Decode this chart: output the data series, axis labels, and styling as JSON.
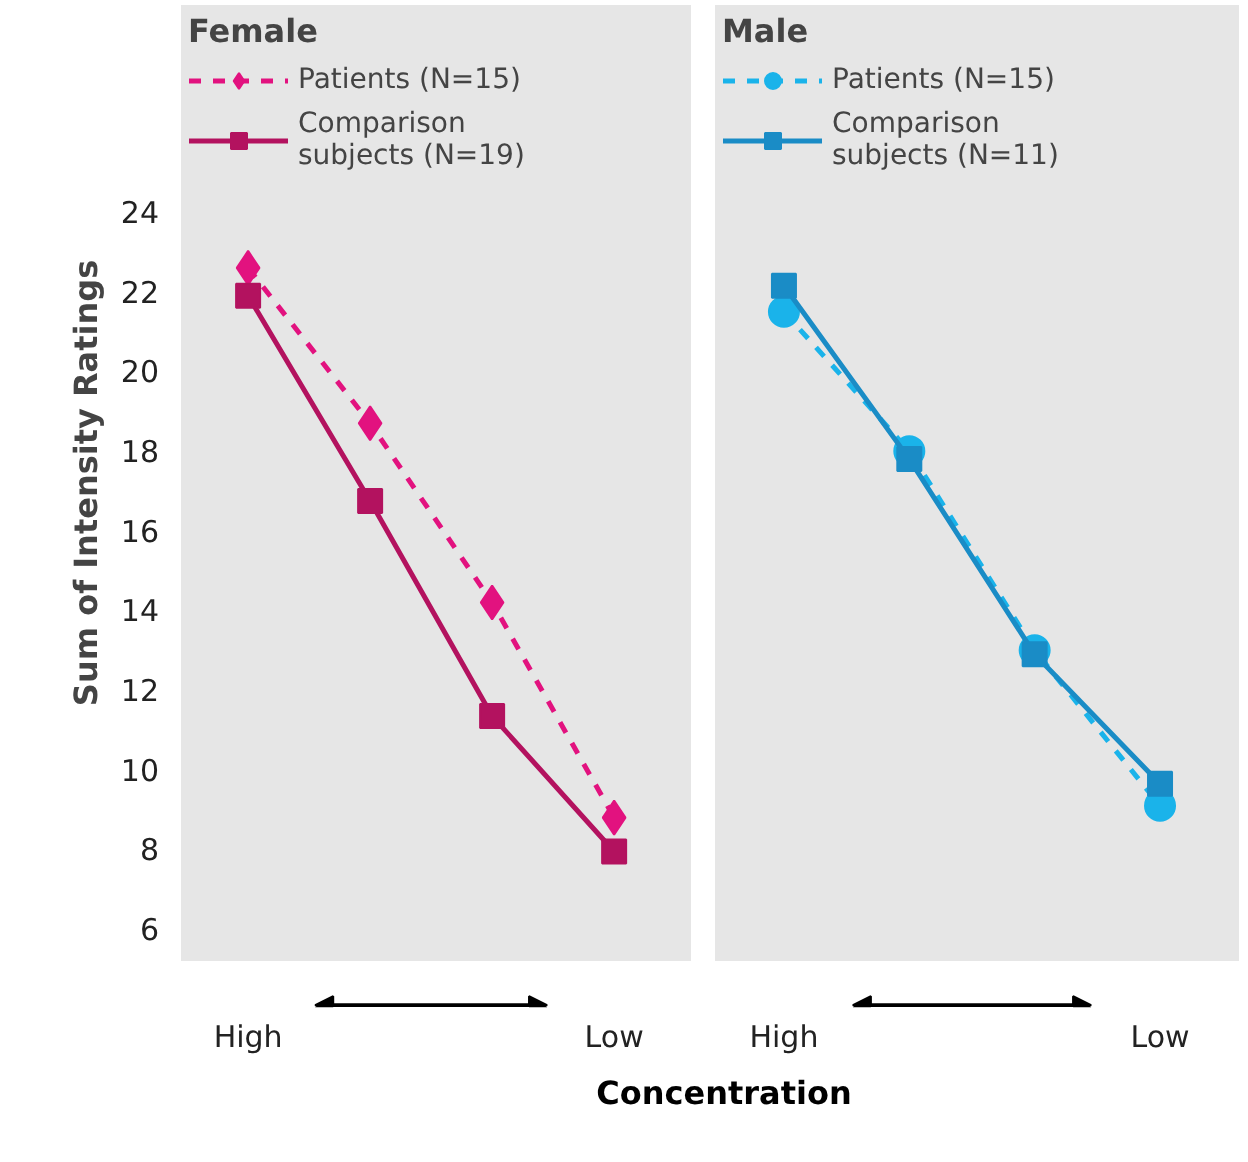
{
  "chart_data": [
    {
      "type": "line",
      "legend_title": "Female",
      "ylabel": "Sum of Intensity Ratings",
      "xlabel": "Concentration",
      "categories": [
        "High",
        null,
        null,
        "Low"
      ],
      "ylim": [
        5.2,
        29.2
      ],
      "yticks": [
        6,
        8,
        10,
        12,
        14,
        16,
        18,
        20,
        22,
        24
      ],
      "legend": "top left",
      "series": [
        {
          "name": "Patients (N=15)",
          "color": "#e2127f",
          "marker": "diamond",
          "line_style": "dashed",
          "values": [
            22.6,
            18.7,
            14.2,
            8.8
          ]
        },
        {
          "name": "Comparison subjects (N=19)",
          "color": "#b3125f",
          "marker": "square",
          "line_style": "solid",
          "values": [
            21.9,
            16.75,
            11.35,
            7.95
          ]
        }
      ]
    },
    {
      "type": "line",
      "legend_title": "Male",
      "categories": [
        "High",
        null,
        null,
        "Low"
      ],
      "ylim": [
        5.2,
        29.2
      ],
      "yticks": [
        6,
        8,
        10,
        12,
        14,
        16,
        18,
        20,
        22,
        24
      ],
      "legend": "top left",
      "tick_labels": "x",
      "series": [
        {
          "name": "Patients (N=15)",
          "color": "#1ab3ea",
          "marker": "circle",
          "line_style": "dashed",
          "values": [
            21.5,
            18.0,
            13.0,
            9.1
          ]
        },
        {
          "name": "Comparison subjects (N=11)",
          "color": "#1a8cc6",
          "marker": "square",
          "line_style": "solid",
          "values": [
            22.15,
            17.8,
            12.9,
            9.65
          ]
        }
      ]
    }
  ]
}
